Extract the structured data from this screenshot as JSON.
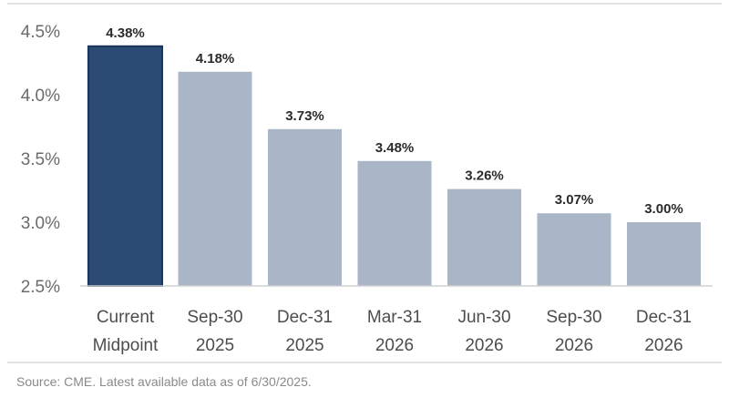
{
  "chart_data": {
    "type": "bar",
    "categories": [
      [
        "Current",
        "Midpoint"
      ],
      [
        "Sep-30",
        "2025"
      ],
      [
        "Dec-31",
        "2025"
      ],
      [
        "Mar-31",
        "2026"
      ],
      [
        "Jun-30",
        "2026"
      ],
      [
        "Sep-30",
        "2026"
      ],
      [
        "Dec-31",
        "2026"
      ]
    ],
    "values": [
      4.38,
      4.18,
      3.73,
      3.48,
      3.26,
      3.07,
      3.0
    ],
    "data_labels": [
      "4.38%",
      "4.18%",
      "3.73%",
      "3.48%",
      "3.26%",
      "3.07%",
      "3.00%"
    ],
    "yticks": [
      2.5,
      3.0,
      3.5,
      4.0,
      4.5
    ],
    "ytick_labels": [
      "2.5%",
      "3.0%",
      "3.5%",
      "4.0%",
      "4.5%"
    ],
    "ylim": [
      2.5,
      4.5
    ],
    "grid": false,
    "colors": {
      "highlight": "#2b4a74",
      "highlight_edge": "#1c3457",
      "bar": "#aab5c8",
      "axis": "#d0d0d0",
      "border": "#e3e3e3"
    },
    "highlight_index": 0,
    "title": "",
    "xlabel": "",
    "ylabel": ""
  },
  "source": "Source: CME. Latest available data as of 6/30/2025."
}
